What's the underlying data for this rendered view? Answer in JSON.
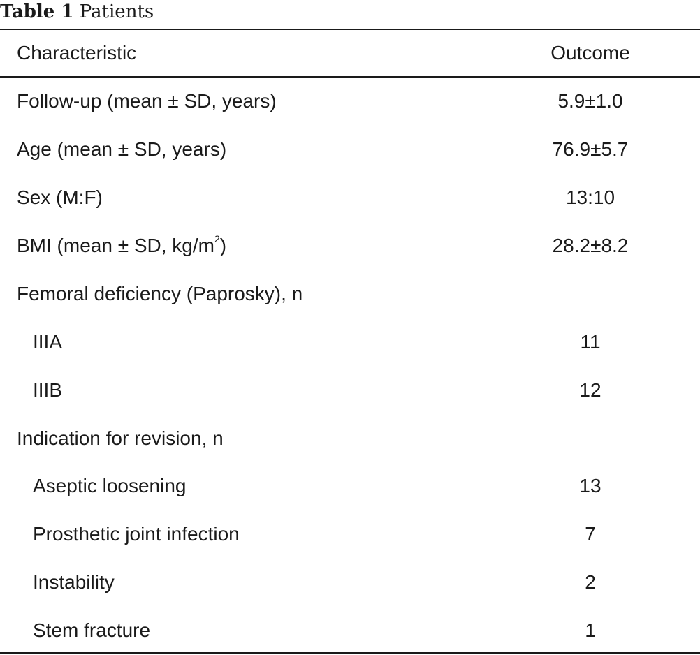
{
  "table": {
    "caption_label": "Table 1",
    "caption_title": "Patients",
    "headers": {
      "characteristic": "Characteristic",
      "outcome": "Outcome"
    },
    "rows": [
      {
        "characteristic": "Follow-up (mean ± SD, years)",
        "outcome": "5.9±1.0"
      },
      {
        "characteristic": "Age (mean ± SD, years)",
        "outcome": "76.9±5.7"
      },
      {
        "characteristic": "Sex (M:F)",
        "outcome": "13:10"
      },
      {
        "characteristic": "BMI (mean ± SD, kg/m",
        "characteristic_sup": "2",
        "characteristic_suffix": ")",
        "outcome": "28.2±8.2"
      },
      {
        "characteristic": "Femoral deficiency (Paprosky), n",
        "outcome": ""
      },
      {
        "characteristic": "IIIA",
        "outcome": "11"
      },
      {
        "characteristic": "IIIB",
        "outcome": "12"
      },
      {
        "characteristic": "Indication for revision, n",
        "outcome": ""
      },
      {
        "characteristic": "Aseptic loosening",
        "outcome": "13"
      },
      {
        "characteristic": "Prosthetic joint infection",
        "outcome": "7"
      },
      {
        "characteristic": "Instability",
        "outcome": "2"
      },
      {
        "characteristic": "Stem fracture",
        "outcome": "1"
      }
    ]
  }
}
